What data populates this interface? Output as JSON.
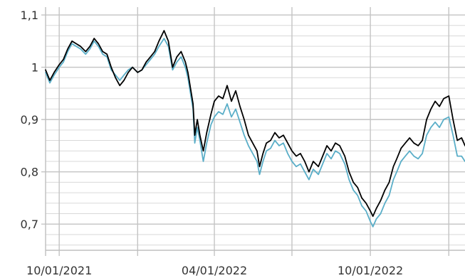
{
  "chart_data": {
    "type": "line",
    "title": "",
    "xlabel": "",
    "ylabel": "",
    "x_range": [
      "2021-09-15",
      "2023-01-20"
    ],
    "ylim": [
      0.65,
      1.115
    ],
    "y_ticks": [
      {
        "value": 0.7,
        "label": "0,7"
      },
      {
        "value": 0.8,
        "label": "0,8"
      },
      {
        "value": 0.9,
        "label": "0,9"
      },
      {
        "value": 1.0,
        "label": "1"
      },
      {
        "value": 1.1,
        "label": "1,1"
      }
    ],
    "y_minor_step": 0.02,
    "x_major_ticks": [
      "2021-10-01",
      "2022-01-01",
      "2022-04-01",
      "2022-07-01",
      "2022-10-01",
      "2023-01-01"
    ],
    "x_tick_labels": [
      {
        "date": "2021-10-01",
        "label": "10/01/2021"
      },
      {
        "date": "2022-04-01",
        "label": "04/01/2022"
      },
      {
        "date": "2022-10-01",
        "label": "10/01/2022"
      }
    ],
    "grid": true,
    "legend": "none",
    "series": [
      {
        "color": "#000000",
        "points": [
          [
            "2021-09-15",
            0.995
          ],
          [
            "2021-09-20",
            0.975
          ],
          [
            "2021-09-25",
            0.99
          ],
          [
            "2021-10-01",
            1.005
          ],
          [
            "2021-10-06",
            1.015
          ],
          [
            "2021-10-11",
            1.035
          ],
          [
            "2021-10-16",
            1.05
          ],
          [
            "2021-10-21",
            1.045
          ],
          [
            "2021-10-26",
            1.04
          ],
          [
            "2021-11-01",
            1.03
          ],
          [
            "2021-11-06",
            1.04
          ],
          [
            "2021-11-11",
            1.055
          ],
          [
            "2021-11-16",
            1.045
          ],
          [
            "2021-11-21",
            1.03
          ],
          [
            "2021-11-26",
            1.025
          ],
          [
            "2021-12-01",
            1.0
          ],
          [
            "2021-12-06",
            0.98
          ],
          [
            "2021-12-11",
            0.965
          ],
          [
            "2021-12-16",
            0.975
          ],
          [
            "2021-12-21",
            0.99
          ],
          [
            "2021-12-26",
            1.0
          ],
          [
            "2022-01-01",
            0.99
          ],
          [
            "2022-01-06",
            0.995
          ],
          [
            "2022-01-11",
            1.01
          ],
          [
            "2022-01-16",
            1.02
          ],
          [
            "2022-01-21",
            1.03
          ],
          [
            "2022-01-26",
            1.05
          ],
          [
            "2022-02-01",
            1.07
          ],
          [
            "2022-02-06",
            1.05
          ],
          [
            "2022-02-11",
            1.0
          ],
          [
            "2022-02-16",
            1.02
          ],
          [
            "2022-02-21",
            1.03
          ],
          [
            "2022-02-26",
            1.01
          ],
          [
            "2022-03-01",
            0.99
          ],
          [
            "2022-03-04",
            0.96
          ],
          [
            "2022-03-07",
            0.93
          ],
          [
            "2022-03-09",
            0.87
          ],
          [
            "2022-03-12",
            0.9
          ],
          [
            "2022-03-15",
            0.87
          ],
          [
            "2022-03-19",
            0.84
          ],
          [
            "2022-03-23",
            0.875
          ],
          [
            "2022-03-28",
            0.91
          ],
          [
            "2022-04-01",
            0.935
          ],
          [
            "2022-04-06",
            0.945
          ],
          [
            "2022-04-11",
            0.94
          ],
          [
            "2022-04-16",
            0.965
          ],
          [
            "2022-04-21",
            0.935
          ],
          [
            "2022-04-26",
            0.955
          ],
          [
            "2022-05-01",
            0.925
          ],
          [
            "2022-05-06",
            0.9
          ],
          [
            "2022-05-11",
            0.87
          ],
          [
            "2022-05-16",
            0.855
          ],
          [
            "2022-05-21",
            0.84
          ],
          [
            "2022-05-24",
            0.81
          ],
          [
            "2022-05-28",
            0.835
          ],
          [
            "2022-06-01",
            0.855
          ],
          [
            "2022-06-06",
            0.86
          ],
          [
            "2022-06-11",
            0.875
          ],
          [
            "2022-06-16",
            0.865
          ],
          [
            "2022-06-21",
            0.87
          ],
          [
            "2022-06-26",
            0.855
          ],
          [
            "2022-07-01",
            0.84
          ],
          [
            "2022-07-06",
            0.83
          ],
          [
            "2022-07-11",
            0.835
          ],
          [
            "2022-07-16",
            0.82
          ],
          [
            "2022-07-21",
            0.8
          ],
          [
            "2022-07-26",
            0.82
          ],
          [
            "2022-08-01",
            0.81
          ],
          [
            "2022-08-06",
            0.83
          ],
          [
            "2022-08-11",
            0.85
          ],
          [
            "2022-08-16",
            0.84
          ],
          [
            "2022-08-21",
            0.855
          ],
          [
            "2022-08-26",
            0.85
          ],
          [
            "2022-09-01",
            0.83
          ],
          [
            "2022-09-06",
            0.8
          ],
          [
            "2022-09-11",
            0.78
          ],
          [
            "2022-09-16",
            0.77
          ],
          [
            "2022-09-21",
            0.75
          ],
          [
            "2022-09-26",
            0.74
          ],
          [
            "2022-10-01",
            0.725
          ],
          [
            "2022-10-04",
            0.715
          ],
          [
            "2022-10-08",
            0.73
          ],
          [
            "2022-10-13",
            0.745
          ],
          [
            "2022-10-18",
            0.765
          ],
          [
            "2022-10-23",
            0.78
          ],
          [
            "2022-10-28",
            0.81
          ],
          [
            "2022-11-01",
            0.825
          ],
          [
            "2022-11-06",
            0.845
          ],
          [
            "2022-11-11",
            0.855
          ],
          [
            "2022-11-16",
            0.865
          ],
          [
            "2022-11-21",
            0.855
          ],
          [
            "2022-11-26",
            0.85
          ],
          [
            "2022-12-01",
            0.86
          ],
          [
            "2022-12-06",
            0.9
          ],
          [
            "2022-12-11",
            0.92
          ],
          [
            "2022-12-16",
            0.935
          ],
          [
            "2022-12-21",
            0.925
          ],
          [
            "2022-12-26",
            0.94
          ],
          [
            "2023-01-01",
            0.945
          ],
          [
            "2023-01-06",
            0.9
          ],
          [
            "2023-01-11",
            0.86
          ],
          [
            "2023-01-16",
            0.865
          ],
          [
            "2023-01-20",
            0.85
          ]
        ]
      },
      {
        "color": "#5aaec8",
        "points": [
          [
            "2021-09-15",
            0.99
          ],
          [
            "2021-09-20",
            0.97
          ],
          [
            "2021-09-25",
            0.985
          ],
          [
            "2021-10-01",
            1.0
          ],
          [
            "2021-10-06",
            1.01
          ],
          [
            "2021-10-11",
            1.03
          ],
          [
            "2021-10-16",
            1.045
          ],
          [
            "2021-10-21",
            1.04
          ],
          [
            "2021-10-26",
            1.035
          ],
          [
            "2021-11-01",
            1.025
          ],
          [
            "2021-11-06",
            1.035
          ],
          [
            "2021-11-11",
            1.05
          ],
          [
            "2021-11-16",
            1.04
          ],
          [
            "2021-11-21",
            1.025
          ],
          [
            "2021-11-26",
            1.02
          ],
          [
            "2021-12-01",
            0.995
          ],
          [
            "2021-12-06",
            0.985
          ],
          [
            "2021-12-11",
            0.975
          ],
          [
            "2021-12-16",
            0.985
          ],
          [
            "2021-12-21",
            0.995
          ],
          [
            "2021-12-26",
            1.0
          ],
          [
            "2022-01-01",
            0.99
          ],
          [
            "2022-01-06",
            0.995
          ],
          [
            "2022-01-11",
            1.005
          ],
          [
            "2022-01-16",
            1.015
          ],
          [
            "2022-01-21",
            1.025
          ],
          [
            "2022-01-26",
            1.04
          ],
          [
            "2022-02-01",
            1.055
          ],
          [
            "2022-02-06",
            1.04
          ],
          [
            "2022-02-11",
            0.995
          ],
          [
            "2022-02-16",
            1.01
          ],
          [
            "2022-02-21",
            1.02
          ],
          [
            "2022-02-26",
            1.0
          ],
          [
            "2022-03-01",
            0.98
          ],
          [
            "2022-03-04",
            0.95
          ],
          [
            "2022-03-07",
            0.92
          ],
          [
            "2022-03-09",
            0.855
          ],
          [
            "2022-03-12",
            0.885
          ],
          [
            "2022-03-15",
            0.86
          ],
          [
            "2022-03-19",
            0.82
          ],
          [
            "2022-03-23",
            0.855
          ],
          [
            "2022-03-28",
            0.89
          ],
          [
            "2022-04-01",
            0.905
          ],
          [
            "2022-04-06",
            0.915
          ],
          [
            "2022-04-11",
            0.91
          ],
          [
            "2022-04-16",
            0.93
          ],
          [
            "2022-04-21",
            0.905
          ],
          [
            "2022-04-26",
            0.92
          ],
          [
            "2022-05-01",
            0.895
          ],
          [
            "2022-05-06",
            0.87
          ],
          [
            "2022-05-11",
            0.85
          ],
          [
            "2022-05-16",
            0.835
          ],
          [
            "2022-05-21",
            0.82
          ],
          [
            "2022-05-24",
            0.795
          ],
          [
            "2022-05-28",
            0.82
          ],
          [
            "2022-06-01",
            0.84
          ],
          [
            "2022-06-06",
            0.845
          ],
          [
            "2022-06-11",
            0.86
          ],
          [
            "2022-06-16",
            0.85
          ],
          [
            "2022-06-21",
            0.855
          ],
          [
            "2022-06-26",
            0.835
          ],
          [
            "2022-07-01",
            0.82
          ],
          [
            "2022-07-06",
            0.81
          ],
          [
            "2022-07-11",
            0.815
          ],
          [
            "2022-07-16",
            0.8
          ],
          [
            "2022-07-21",
            0.785
          ],
          [
            "2022-07-26",
            0.805
          ],
          [
            "2022-08-01",
            0.795
          ],
          [
            "2022-08-06",
            0.815
          ],
          [
            "2022-08-11",
            0.835
          ],
          [
            "2022-08-16",
            0.825
          ],
          [
            "2022-08-21",
            0.84
          ],
          [
            "2022-08-26",
            0.835
          ],
          [
            "2022-09-01",
            0.815
          ],
          [
            "2022-09-06",
            0.785
          ],
          [
            "2022-09-11",
            0.765
          ],
          [
            "2022-09-16",
            0.755
          ],
          [
            "2022-09-21",
            0.735
          ],
          [
            "2022-09-26",
            0.725
          ],
          [
            "2022-10-01",
            0.705
          ],
          [
            "2022-10-04",
            0.695
          ],
          [
            "2022-10-08",
            0.71
          ],
          [
            "2022-10-13",
            0.72
          ],
          [
            "2022-10-18",
            0.74
          ],
          [
            "2022-10-23",
            0.755
          ],
          [
            "2022-10-28",
            0.785
          ],
          [
            "2022-11-01",
            0.8
          ],
          [
            "2022-11-06",
            0.82
          ],
          [
            "2022-11-11",
            0.83
          ],
          [
            "2022-11-16",
            0.84
          ],
          [
            "2022-11-21",
            0.83
          ],
          [
            "2022-11-26",
            0.825
          ],
          [
            "2022-12-01",
            0.835
          ],
          [
            "2022-12-06",
            0.87
          ],
          [
            "2022-12-11",
            0.885
          ],
          [
            "2022-12-16",
            0.895
          ],
          [
            "2022-12-21",
            0.885
          ],
          [
            "2022-12-26",
            0.9
          ],
          [
            "2023-01-01",
            0.905
          ],
          [
            "2023-01-06",
            0.87
          ],
          [
            "2023-01-11",
            0.83
          ],
          [
            "2023-01-16",
            0.83
          ],
          [
            "2023-01-20",
            0.82
          ]
        ]
      }
    ]
  }
}
